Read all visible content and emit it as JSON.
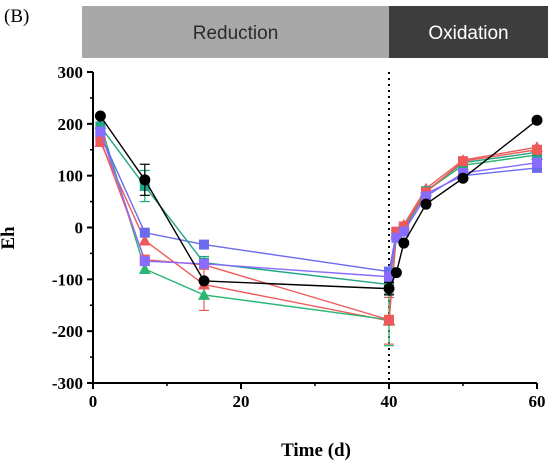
{
  "panel_label": "(B)",
  "phases": [
    {
      "label": "Reduction",
      "color": "#a8a8a8",
      "text_color": "#2b2b2b",
      "x_start": 0,
      "x_end": 40
    },
    {
      "label": "Oxidation",
      "color": "#3d3d3d",
      "text_color": "#ffffff",
      "x_start": 40,
      "x_end": 60
    }
  ],
  "chart_data": {
    "type": "line",
    "title": "",
    "xlabel": "Time (d)",
    "ylabel": "Eh",
    "xlim": [
      0,
      60
    ],
    "ylim": [
      -300,
      300
    ],
    "xticks": [
      0,
      20,
      40,
      60
    ],
    "yticks": [
      -300,
      -200,
      -100,
      0,
      100,
      200,
      300
    ],
    "grid": false,
    "vline": {
      "x": 40,
      "style": "dotted"
    },
    "series": [
      {
        "color": "#ee5a5a",
        "marker": "triangle",
        "x": [
          1,
          7,
          15,
          40,
          41,
          42,
          45,
          50,
          60
        ],
        "y": [
          165,
          -25,
          -110,
          -180,
          -15,
          5,
          75,
          130,
          155
        ],
        "err": [
          0,
          0,
          50,
          45,
          0,
          0,
          0,
          0,
          0
        ]
      },
      {
        "color": "#2bb673",
        "marker": "triangle",
        "x": [
          1,
          7,
          15,
          40,
          41,
          42,
          45,
          50,
          60
        ],
        "y": [
          200,
          -80,
          -130,
          -178,
          -10,
          0,
          70,
          120,
          140
        ],
        "err": [
          0,
          0,
          0,
          50,
          0,
          0,
          0,
          0,
          0
        ]
      },
      {
        "color": "#6b6bee",
        "marker": "square",
        "x": [
          1,
          7,
          15,
          40,
          41,
          42,
          45,
          50,
          60
        ],
        "y": [
          180,
          -10,
          -33,
          -85,
          -10,
          -2,
          65,
          100,
          115
        ],
        "err": [
          0,
          0,
          0,
          0,
          0,
          0,
          0,
          0,
          0
        ]
      },
      {
        "color": "#21a584",
        "marker": "square",
        "x": [
          1,
          7,
          15,
          40,
          41,
          42,
          45,
          50,
          60
        ],
        "y": [
          195,
          80,
          -68,
          -110,
          -12,
          -5,
          70,
          125,
          145
        ],
        "err": [
          0,
          30,
          12,
          0,
          0,
          0,
          0,
          0,
          0
        ]
      },
      {
        "color": "#ee5a5a",
        "marker": "square",
        "x": [
          1,
          7,
          15,
          40,
          41,
          42,
          45,
          50,
          60
        ],
        "y": [
          170,
          -62,
          -72,
          -178,
          -8,
          2,
          68,
          128,
          150
        ],
        "err": [
          0,
          0,
          0,
          0,
          0,
          0,
          0,
          0,
          0
        ]
      },
      {
        "color": "#8a6bff",
        "marker": "square",
        "x": [
          1,
          7,
          15,
          40,
          41,
          42,
          45,
          50,
          60
        ],
        "y": [
          185,
          -65,
          -70,
          -95,
          -20,
          -8,
          60,
          105,
          125
        ],
        "err": [
          0,
          0,
          0,
          0,
          0,
          0,
          0,
          0,
          0
        ]
      },
      {
        "color": "#000000",
        "marker": "circle",
        "x": [
          1,
          7,
          15,
          40,
          41,
          42,
          45,
          50,
          60
        ],
        "y": [
          215,
          92,
          -103,
          -118,
          -87,
          -30,
          45,
          95,
          207
        ],
        "err": [
          0,
          30,
          0,
          12,
          0,
          0,
          0,
          0,
          0
        ]
      }
    ]
  }
}
